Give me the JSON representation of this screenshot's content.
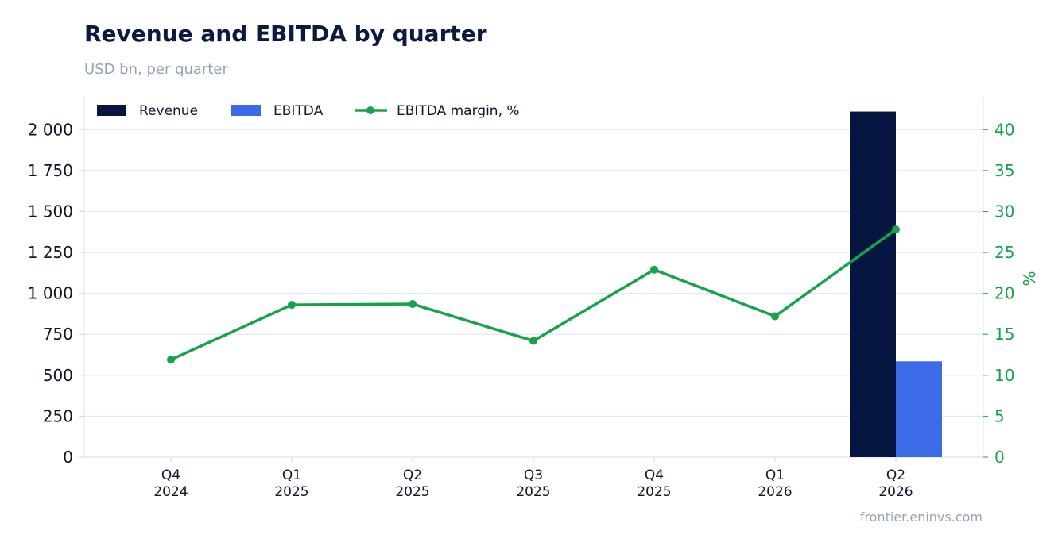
{
  "title": "Revenue and EBITDA by quarter",
  "subtitle": "USD bn, per quarter",
  "source": "frontier.eninvs.com",
  "colors": {
    "revenue": "#061640",
    "ebitda": "#3b6be6",
    "margin": "#16a34a",
    "grid": "#e2e8f0",
    "axis_text": "#0f172a"
  },
  "chart_data": {
    "type": "bar",
    "categories": [
      "Q4\n2024",
      "Q1\n2025",
      "Q2\n2025",
      "Q3\n2025",
      "Q4\n2025",
      "Q1\n2026",
      "Q2\n2026"
    ],
    "series": [
      {
        "name": "Revenue",
        "type": "bar",
        "axis": "left",
        "values": [
          0,
          0,
          0,
          0,
          0,
          0,
          2110
        ]
      },
      {
        "name": "EBITDA",
        "type": "bar",
        "axis": "left",
        "values": [
          0,
          0,
          0,
          0,
          0,
          0,
          585
        ]
      },
      {
        "name": "EBITDA margin, %",
        "type": "line",
        "axis": "right",
        "values": [
          11.9,
          18.6,
          18.7,
          14.2,
          22.9,
          17.2,
          27.8
        ]
      }
    ],
    "y_left": {
      "lim": [
        0,
        2200
      ],
      "ticks": [
        0,
        250,
        500,
        750,
        1000,
        1250,
        1500,
        1750,
        2000
      ],
      "tick_labels": [
        "0",
        "250",
        "500",
        "750",
        "1 000",
        "1 250",
        "1 500",
        "1 750",
        "2 000"
      ]
    },
    "y_right": {
      "label": "%",
      "lim": [
        0,
        44
      ],
      "ticks": [
        0,
        5,
        10,
        15,
        20,
        25,
        30,
        35,
        40
      ]
    },
    "legend": "top-left",
    "grid": true
  }
}
